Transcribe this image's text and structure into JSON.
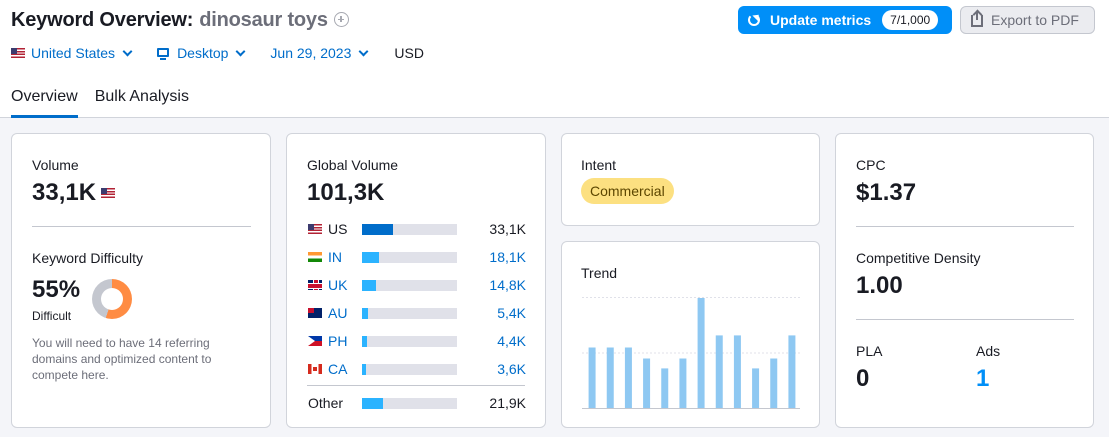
{
  "header": {
    "title": "Keyword Overview:",
    "keyword": "dinosaur toys",
    "filters": {
      "country": "United States",
      "device": "Desktop",
      "date": "Jun 29, 2023",
      "currency": "USD"
    },
    "update_button": {
      "label": "Update metrics",
      "quota": "7/1,000"
    },
    "export_button": "Export to PDF"
  },
  "tabs": [
    "Overview",
    "Bulk Analysis"
  ],
  "volume_card": {
    "volume_label": "Volume",
    "volume_value": "33,1K",
    "kd_label": "Keyword Difficulty",
    "kd_value": "55%",
    "kd_percent": 55,
    "kd_level": "Difficult",
    "kd_note": "You will need to have 14 referring domains and optimized content to compete here."
  },
  "global_card": {
    "label": "Global Volume",
    "value": "101,3K",
    "countries": [
      {
        "code": "US",
        "value": "33,1K",
        "share": 0.33
      },
      {
        "code": "IN",
        "value": "18,1K",
        "share": 0.18
      },
      {
        "code": "UK",
        "value": "14,8K",
        "share": 0.15
      },
      {
        "code": "AU",
        "value": "5,4K",
        "share": 0.06
      },
      {
        "code": "PH",
        "value": "4,4K",
        "share": 0.05
      },
      {
        "code": "CA",
        "value": "3,6K",
        "share": 0.04
      }
    ],
    "other": {
      "label": "Other",
      "value": "21,9K",
      "share": 0.22
    }
  },
  "intent_card": {
    "label": "Intent",
    "value": "Commercial"
  },
  "trend_card": {
    "label": "Trend",
    "chart_data": {
      "type": "bar",
      "values": [
        0.55,
        0.55,
        0.55,
        0.45,
        0.36,
        0.45,
        1.0,
        0.66,
        0.66,
        0.36,
        0.45,
        0.66
      ],
      "ylim": [
        0,
        1
      ],
      "grid": true
    }
  },
  "cpc_card": {
    "cpc_label": "CPC",
    "cpc_value": "$1.37",
    "density_label": "Competitive Density",
    "density_value": "1.00",
    "pla_label": "PLA",
    "pla_value": "0",
    "ads_label": "Ads",
    "ads_value": "1"
  },
  "colors": {
    "accent": "#008ff8",
    "link": "#006dca",
    "kd_ring": "#ff8c43",
    "bar_primary": "#006dca",
    "bar_secondary": "#2bb3ff",
    "trend_bar": "#8ec8f2",
    "intent_badge": "#fce081"
  }
}
